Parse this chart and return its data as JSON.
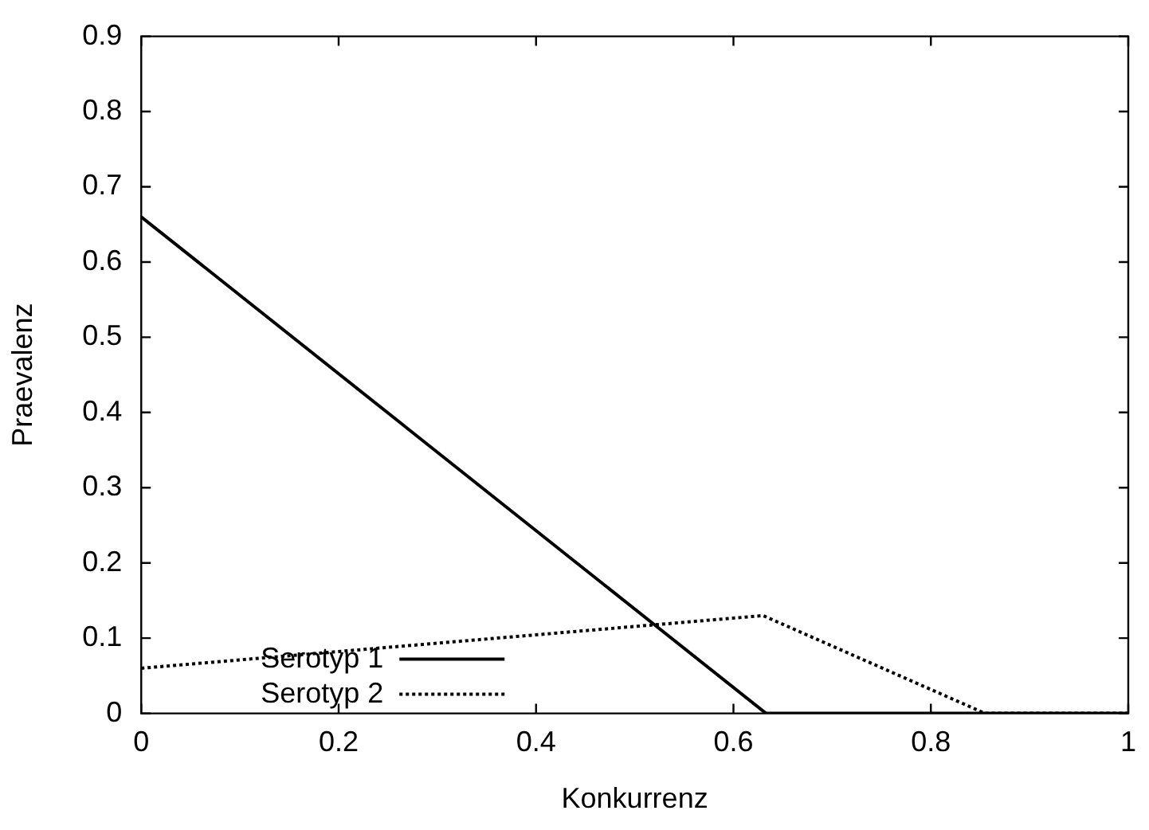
{
  "chart_data": {
    "type": "line",
    "xlabel": "Konkurrenz",
    "ylabel": "Praevalenz",
    "xlim": [
      0,
      1
    ],
    "xticks": [
      0,
      0.2,
      0.4,
      0.6,
      0.8,
      1
    ],
    "ylim": [
      0,
      0.9
    ],
    "yticks": [
      0,
      0.1,
      0.2,
      0.3,
      0.4,
      0.5,
      0.6,
      0.7,
      0.8,
      0.9
    ],
    "series": [
      {
        "name": "Serotyp 1",
        "color": "#000000",
        "x": [
          0,
          0.633,
          1
        ],
        "values": [
          0.66,
          0,
          0
        ],
        "line_style": "solid"
      },
      {
        "name": "Serotyp 2",
        "color": "#000000",
        "x": [
          0,
          0.63,
          0.855,
          1
        ],
        "values": [
          0.06,
          0.13,
          0,
          0
        ],
        "line_style": "dotted"
      }
    ],
    "legend": "bottom left",
    "grid": false,
    "marker": "none"
  }
}
